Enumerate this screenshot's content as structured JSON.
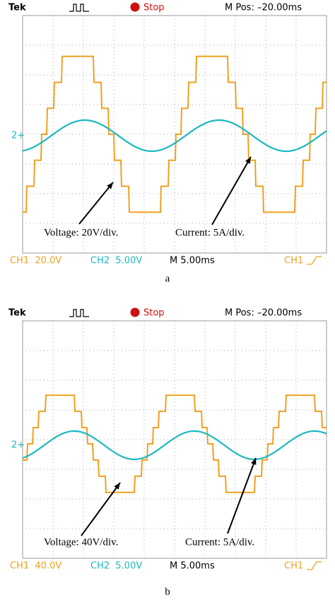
{
  "panels": [
    {
      "brand": "Tek",
      "state": "Stop",
      "mpos": "M Pos: –20.00ms",
      "ch2_marker": "2+",
      "ch1_scale": "CH1  20.0V",
      "ch2_scale": "CH2  5.00V",
      "timebase": "M 5.00ms",
      "trigger": "CH1",
      "voltage_note": "Voltage: 20V/div.",
      "current_note": "Current: 5A/div.",
      "caption": "a"
    },
    {
      "brand": "Tek",
      "state": "Stop",
      "mpos": "M Pos: –20.00ms",
      "ch2_marker": "2+",
      "ch1_scale": "CH1  40.0V",
      "ch2_scale": "CH2  5.00V",
      "timebase": "M 5.00ms",
      "trigger": "CH1",
      "voltage_note": "Voltage: 40V/div.",
      "current_note": "Current: 5A/div.",
      "caption": "b"
    }
  ]
}
